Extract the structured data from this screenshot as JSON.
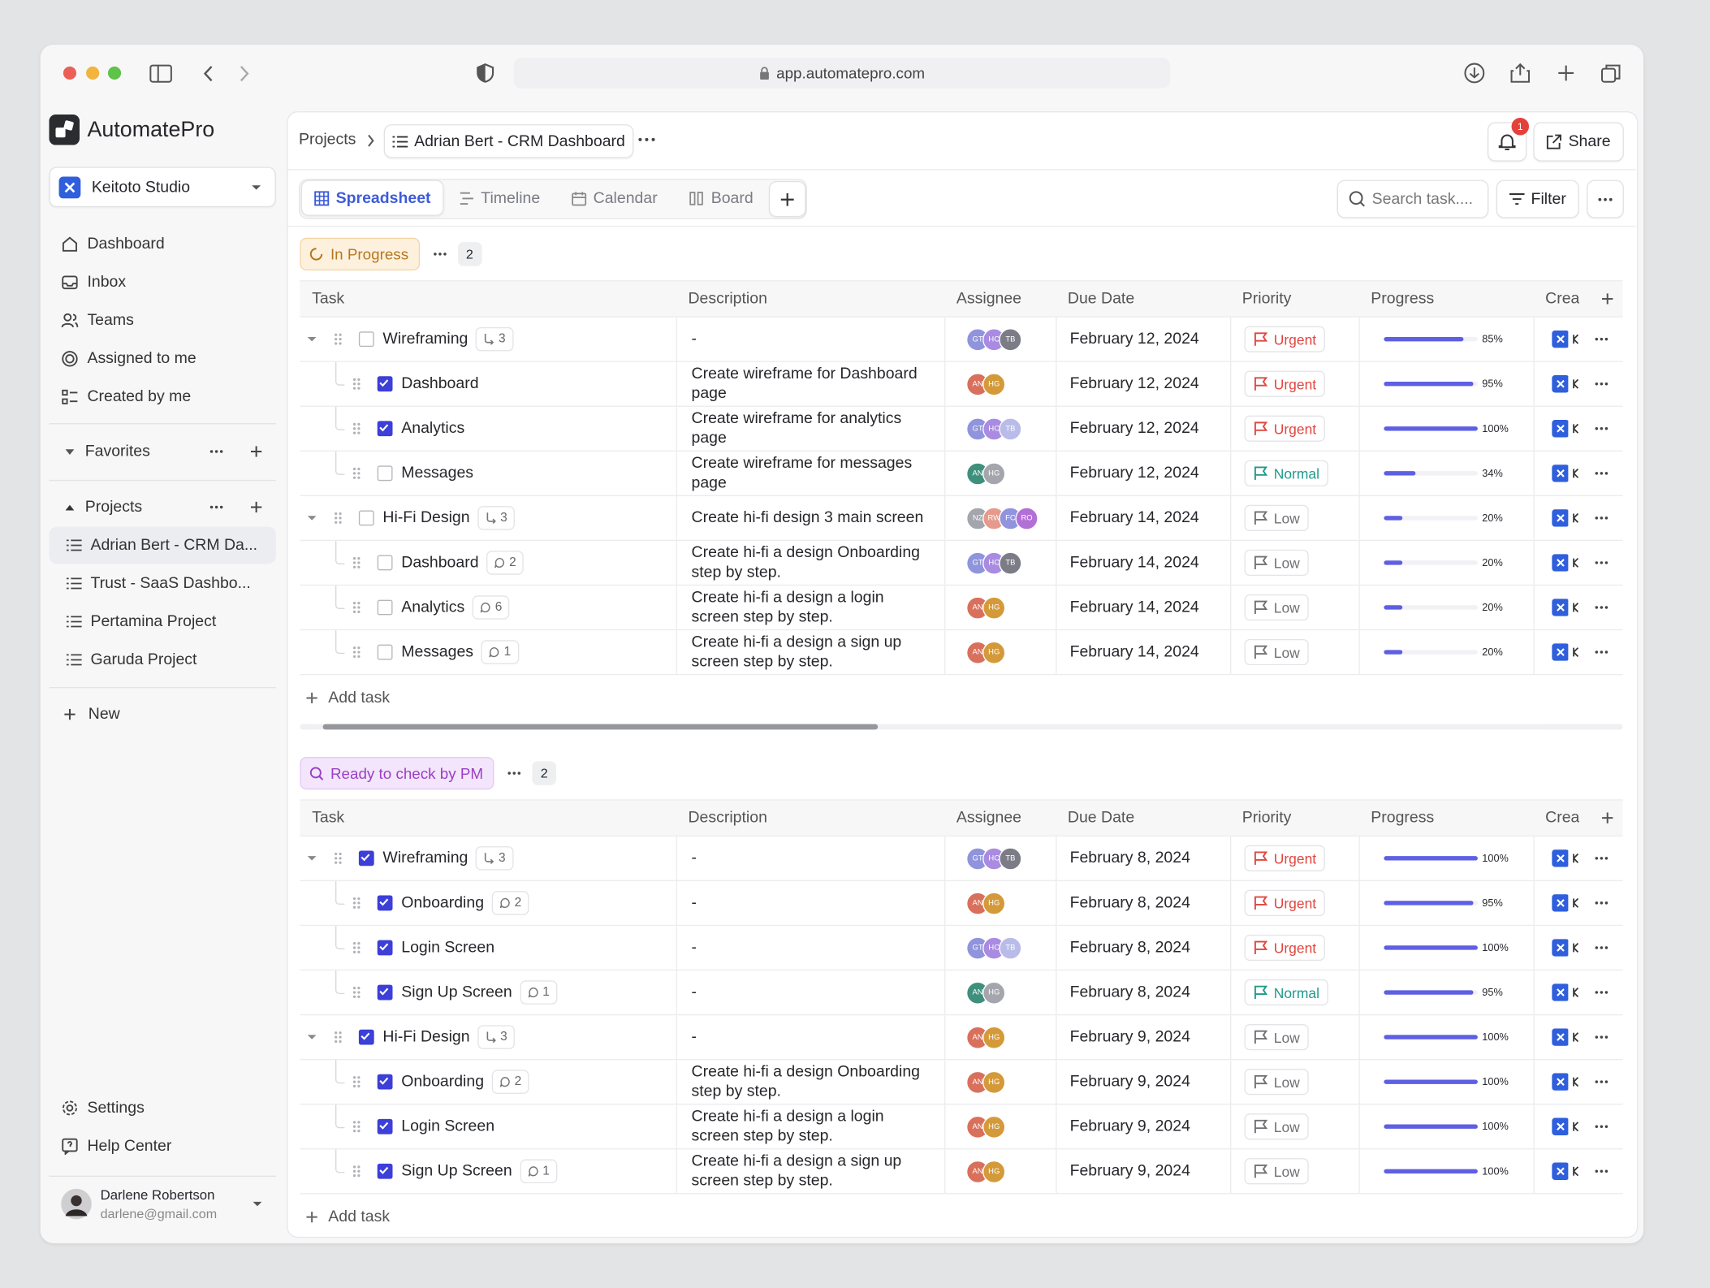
{
  "browser": {
    "url": "app.automatepro.com"
  },
  "sidebar": {
    "brand": "AutomatePro",
    "workspace": "Keitoto Studio",
    "nav": [
      "Dashboard",
      "Inbox",
      "Teams",
      "Assigned to me",
      "Created by me"
    ],
    "favorites": "Favorites",
    "projects_label": "Projects",
    "projects": [
      "Adrian Bert - CRM Da...",
      "Trust - SaaS Dashbo...",
      "Pertamina Project",
      "Garuda Project"
    ],
    "new": "New",
    "settings": "Settings",
    "help": "Help Center",
    "user": {
      "name": "Darlene Robertson",
      "email": "darlene@gmail.com"
    }
  },
  "header": {
    "breadcrumb": [
      "Projects",
      "Adrian Bert - CRM Dashboard"
    ],
    "notifications": 1,
    "share": "Share"
  },
  "toolbar": {
    "tabs": [
      "Spreadsheet",
      "Timeline",
      "Calendar",
      "Board"
    ],
    "active_tab": 0,
    "search": "Search task....",
    "filter": "Filter"
  },
  "columns": [
    "Task",
    "Description",
    "Assignee",
    "Due Date",
    "Priority",
    "Progress",
    "Crea"
  ],
  "add_task": "Add task",
  "priority_colors": {
    "Urgent": "#e0463f",
    "Normal": "#1f9a8a",
    "Low": "#707075"
  },
  "groups": [
    {
      "status": "In Progress",
      "count": 2,
      "rows": [
        {
          "name": "Wireframing",
          "done": false,
          "subtasks": 3,
          "description": "-",
          "assignees": [
            {
              "initials": "GT",
              "color": "#8f94dc"
            },
            {
              "initials": "HC",
              "color": "#a98be2"
            },
            {
              "initials": "TB",
              "color": "#7b7c85"
            }
          ],
          "due": "February 12, 2024",
          "priority": "Urgent",
          "progress": {
            "value": 85,
            "label": "85%"
          },
          "children": [
            {
              "name": "Dashboard",
              "done": true,
              "description": "Create wireframe for Dashboard page",
              "assignees": [
                {
                  "initials": "AN",
                  "color": "#d8705c"
                },
                {
                  "initials": "HG",
                  "color": "#d49a3a"
                }
              ],
              "due": "February 12, 2024",
              "priority": "Urgent",
              "progress": {
                "value": 95,
                "label": "95%"
              }
            },
            {
              "name": "Analytics",
              "done": true,
              "description": "Create wireframe for analytics page",
              "assignees": [
                {
                  "initials": "GT",
                  "color": "#8f94dc"
                },
                {
                  "initials": "HC",
                  "color": "#a98be2"
                },
                {
                  "initials": "TB",
                  "color": "#b9bce8"
                }
              ],
              "due": "February 12, 2024",
              "priority": "Urgent",
              "progress": {
                "value": 100,
                "label": "100%"
              }
            },
            {
              "name": "Messages",
              "done": false,
              "description": "Create wireframe for messages page",
              "assignees": [
                {
                  "initials": "AN",
                  "color": "#3f8f7d"
                },
                {
                  "initials": "HG",
                  "color": "#a5a6ad"
                }
              ],
              "due": "February 12, 2024",
              "priority": "Normal",
              "progress": {
                "value": 34,
                "label": "34%"
              }
            }
          ]
        },
        {
          "name": "Hi-Fi Design",
          "done": false,
          "subtasks": 3,
          "description": "Create hi-fi design  3 main screen",
          "assignees": [
            {
              "initials": "NZ",
              "color": "#a5a6ad"
            },
            {
              "initials": "RW",
              "color": "#e59a8c"
            },
            {
              "initials": "FC",
              "color": "#8f94dc"
            },
            {
              "initials": "RO",
              "color": "#b26fd6"
            }
          ],
          "due": "February 14, 2024",
          "priority": "Low",
          "progress": {
            "value": 20,
            "label": "20%"
          },
          "children": [
            {
              "name": "Dashboard",
              "done": false,
              "comments": 2,
              "description": "Create hi-fi a design Onboarding step by step.",
              "assignees": [
                {
                  "initials": "GT",
                  "color": "#8f94dc"
                },
                {
                  "initials": "HC",
                  "color": "#a98be2"
                },
                {
                  "initials": "TB",
                  "color": "#7b7c85"
                }
              ],
              "due": "February 14, 2024",
              "priority": "Low",
              "progress": {
                "value": 20,
                "label": "20%"
              }
            },
            {
              "name": "Analytics",
              "done": false,
              "comments": 6,
              "description": "Create hi-fi a design a login screen step by step.",
              "assignees": [
                {
                  "initials": "AN",
                  "color": "#d8705c"
                },
                {
                  "initials": "HG",
                  "color": "#d49a3a"
                }
              ],
              "due": "February 14, 2024",
              "priority": "Low",
              "progress": {
                "value": 20,
                "label": "20%"
              }
            },
            {
              "name": "Messages",
              "done": false,
              "comments": 1,
              "description": "Create hi-fi a design a sign up screen step by step.",
              "assignees": [
                {
                  "initials": "AN",
                  "color": "#d8705c"
                },
                {
                  "initials": "HG",
                  "color": "#d49a3a"
                }
              ],
              "due": "February 14, 2024",
              "priority": "Low",
              "progress": {
                "value": 20,
                "label": "20%"
              }
            }
          ]
        }
      ]
    },
    {
      "status": "Ready to check by PM",
      "count": 2,
      "rows": [
        {
          "name": "Wireframing",
          "done": true,
          "subtasks": 3,
          "description": "-",
          "assignees": [
            {
              "initials": "GT",
              "color": "#8f94dc"
            },
            {
              "initials": "HC",
              "color": "#a98be2"
            },
            {
              "initials": "TB",
              "color": "#7b7c85"
            }
          ],
          "due": "February 8, 2024",
          "priority": "Urgent",
          "progress": {
            "value": 100,
            "label": "100%"
          },
          "children": [
            {
              "name": "Onboarding",
              "done": true,
              "comments": 2,
              "description": "-",
              "assignees": [
                {
                  "initials": "AN",
                  "color": "#d8705c"
                },
                {
                  "initials": "HG",
                  "color": "#d49a3a"
                }
              ],
              "due": "February 8, 2024",
              "priority": "Urgent",
              "progress": {
                "value": 95,
                "label": "95%"
              }
            },
            {
              "name": "Login Screen",
              "done": true,
              "description": "-",
              "assignees": [
                {
                  "initials": "GT",
                  "color": "#8f94dc"
                },
                {
                  "initials": "HC",
                  "color": "#a98be2"
                },
                {
                  "initials": "TB",
                  "color": "#b9bce8"
                }
              ],
              "due": "February 8, 2024",
              "priority": "Urgent",
              "progress": {
                "value": 100,
                "label": "100%"
              }
            },
            {
              "name": "Sign Up Screen",
              "done": true,
              "comments": 1,
              "description": "-",
              "assignees": [
                {
                  "initials": "AN",
                  "color": "#3f8f7d"
                },
                {
                  "initials": "HG",
                  "color": "#a5a6ad"
                }
              ],
              "due": "February 8, 2024",
              "priority": "Normal",
              "progress": {
                "value": 95,
                "label": "95%"
              }
            }
          ]
        },
        {
          "name": "Hi-Fi Design",
          "done": true,
          "subtasks": 3,
          "description": "-",
          "assignees": [
            {
              "initials": "AN",
              "color": "#d8705c"
            },
            {
              "initials": "HG",
              "color": "#d49a3a"
            }
          ],
          "due": "February 9, 2024",
          "priority": "Low",
          "progress": {
            "value": 100,
            "label": "100%"
          },
          "children": [
            {
              "name": "Onboarding",
              "done": true,
              "comments": 2,
              "description": "Create hi-fi a design Onboarding step by step.",
              "assignees": [
                {
                  "initials": "AN",
                  "color": "#d8705c"
                },
                {
                  "initials": "HG",
                  "color": "#d49a3a"
                }
              ],
              "due": "February 9, 2024",
              "priority": "Low",
              "progress": {
                "value": 100,
                "label": "100%"
              }
            },
            {
              "name": "Login Screen",
              "done": true,
              "description": "Create hi-fi a design a login screen step by step.",
              "assignees": [
                {
                  "initials": "AN",
                  "color": "#d8705c"
                },
                {
                  "initials": "HG",
                  "color": "#d49a3a"
                }
              ],
              "due": "February 9, 2024",
              "priority": "Low",
              "progress": {
                "value": 100,
                "label": "100%"
              }
            },
            {
              "name": "Sign Up Screen",
              "done": true,
              "comments": 1,
              "description": "Create hi-fi a design a sign up screen step by step.",
              "assignees": [
                {
                  "initials": "AN",
                  "color": "#d8705c"
                },
                {
                  "initials": "HG",
                  "color": "#d49a3a"
                }
              ],
              "due": "February 9, 2024",
              "priority": "Low",
              "progress": {
                "value": 100,
                "label": "100%"
              }
            }
          ]
        }
      ]
    }
  ]
}
